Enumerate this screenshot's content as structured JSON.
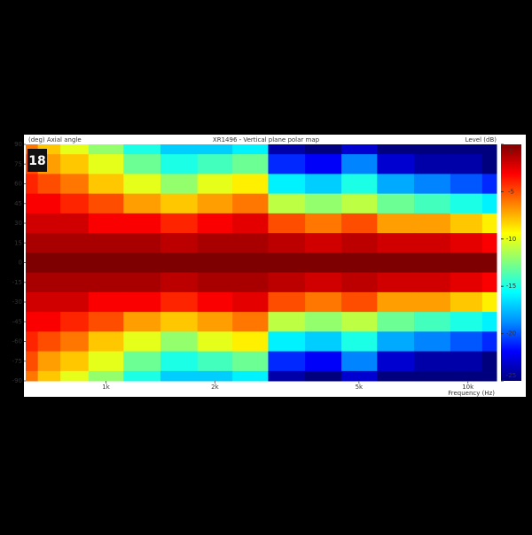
{
  "logo": "18",
  "chart_data": {
    "type": "heatmap",
    "title": "XR1496 - Vertical plane polar map",
    "y_label": "(deg)  Axial angle",
    "x_label": "Frequency  (Hz)",
    "colorbar_label": "Level  (dB)",
    "x_scale": "log",
    "x": [
      600,
      700,
      800,
      1000,
      1250,
      1600,
      2000,
      2500,
      3150,
      4000,
      5000,
      6300,
      8000,
      10000,
      12000
    ],
    "y": [
      90,
      75,
      60,
      45,
      30,
      15,
      0,
      -15,
      -30,
      -45,
      -60,
      -75,
      -90
    ],
    "z": [
      [
        -6,
        -8,
        -10,
        -12,
        -15,
        -17,
        -17,
        -16,
        -24,
        -25,
        -23,
        -25,
        -25,
        -25,
        -25
      ],
      [
        -5,
        -7,
        -8,
        -10,
        -13,
        -15,
        -14,
        -13,
        -21,
        -22,
        -19,
        -23,
        -24,
        -24,
        -25
      ],
      [
        -4,
        -5,
        -6,
        -8,
        -10,
        -12,
        -10,
        -9,
        -16,
        -17,
        -15,
        -18,
        -19,
        -20,
        -21
      ],
      [
        -3,
        -3,
        -4,
        -5,
        -7,
        -8,
        -7,
        -6,
        -11,
        -12,
        -11,
        -13,
        -14,
        -15,
        -16
      ],
      [
        -2,
        -2,
        -2,
        -3,
        -3,
        -4,
        -3,
        -2.5,
        -5,
        -6,
        -5,
        -7,
        -7,
        -8,
        -9
      ],
      [
        -1,
        -1,
        -1,
        -1,
        -1,
        -1.5,
        -1,
        -1,
        -1.5,
        -2,
        -1.5,
        -2,
        -2,
        -2.5,
        -3
      ],
      [
        0,
        0,
        0,
        0,
        0,
        0,
        0,
        0,
        0,
        0,
        0,
        0,
        0,
        0,
        0
      ],
      [
        -1,
        -1,
        -1,
        -1,
        -1,
        -1.5,
        -1,
        -1,
        -1.5,
        -2,
        -1.5,
        -2,
        -2,
        -2.5,
        -3
      ],
      [
        -2,
        -2,
        -2,
        -3,
        -3,
        -4,
        -3,
        -2.5,
        -5,
        -6,
        -5,
        -7,
        -7,
        -8,
        -9
      ],
      [
        -3,
        -3,
        -4,
        -5,
        -7,
        -8,
        -7,
        -6,
        -11,
        -12,
        -11,
        -13,
        -14,
        -15,
        -16
      ],
      [
        -4,
        -5,
        -6,
        -8,
        -10,
        -12,
        -10,
        -9,
        -16,
        -17,
        -15,
        -18,
        -19,
        -20,
        -21
      ],
      [
        -5,
        -7,
        -8,
        -10,
        -13,
        -15,
        -14,
        -13,
        -21,
        -22,
        -19,
        -23,
        -24,
        -24,
        -25
      ],
      [
        -6,
        -8,
        -10,
        -12,
        -15,
        -17,
        -17,
        -16,
        -24,
        -25,
        -23,
        -25,
        -25,
        -25,
        -25
      ]
    ],
    "xlim": [
      600,
      12000
    ],
    "ylim": [
      -90,
      90
    ],
    "xticks": [
      {
        "value": 1000,
        "label": "1k"
      },
      {
        "value": 2000,
        "label": "2k"
      },
      {
        "value": 5000,
        "label": "5k"
      },
      {
        "value": 10000,
        "label": "10k"
      }
    ],
    "yticks": [
      90,
      75,
      60,
      45,
      30,
      15,
      0,
      -15,
      -30,
      -45,
      -60,
      -75,
      -90
    ],
    "clim": [
      -25,
      0
    ],
    "cticks": [
      0,
      -5,
      -10,
      -15,
      -20,
      -25
    ],
    "colormap": [
      "#00007f",
      "#0000ff",
      "#0090ff",
      "#00ffff",
      "#80ff80",
      "#ffff00",
      "#ff8000",
      "#ff0000",
      "#7f0000"
    ]
  }
}
